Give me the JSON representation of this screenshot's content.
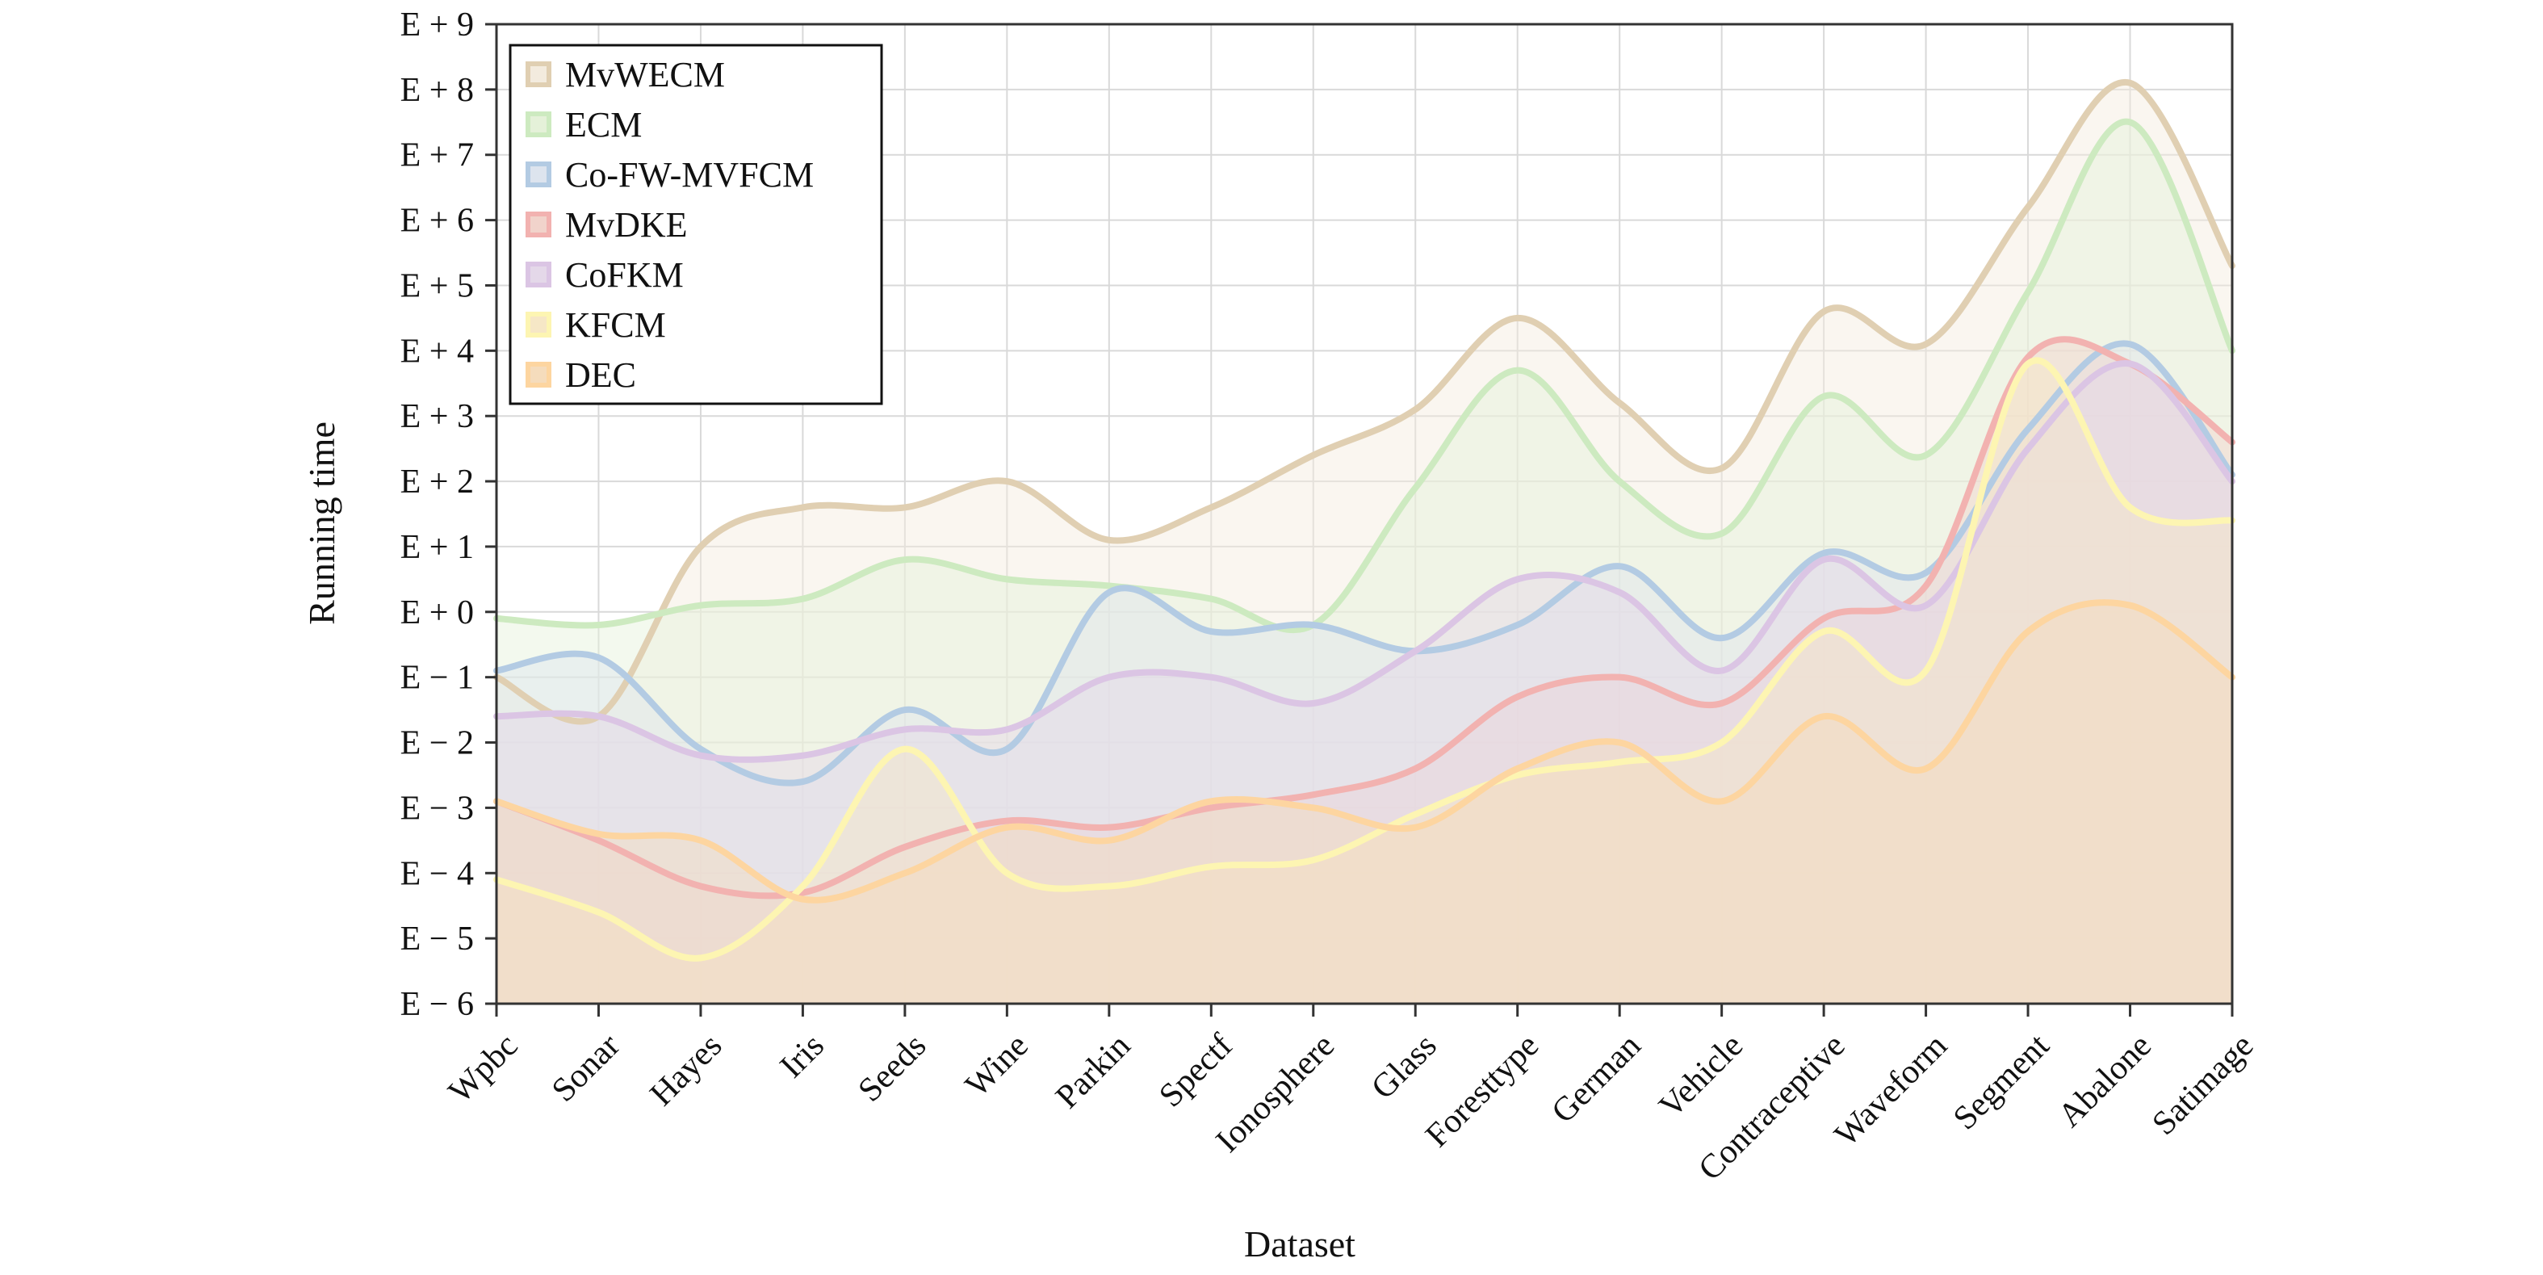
{
  "chart_data": {
    "type": "area",
    "title": "",
    "xlabel": "Dataset",
    "ylabel": "Running time",
    "categories": [
      "Wpbc",
      "Sonar",
      "Hayes",
      "Iris",
      "Seeds",
      "Wine",
      "Parkin",
      "Spectf",
      "Ionosphere",
      "Glass",
      "Foresttype",
      "German",
      "Vehicle",
      "Contraceptive",
      "Waveform",
      "Segment",
      "Abalone",
      "Satimage"
    ],
    "ylim": [
      -6,
      9
    ],
    "y_ticks": [
      -6,
      -5,
      -4,
      -3,
      -2,
      -1,
      0,
      1,
      2,
      3,
      4,
      5,
      6,
      7,
      8,
      9
    ],
    "y_tick_labels": [
      "E − 6",
      "E − 5",
      "E − 4",
      "E − 3",
      "E − 2",
      "E − 1",
      "E + 0",
      "E + 1",
      "E + 2",
      "E + 3",
      "E + 4",
      "E + 5",
      "E + 6",
      "E + 7",
      "E + 8",
      "E + 9"
    ],
    "grid": true,
    "legend_position": "top-left",
    "series": [
      {
        "name": "MvWECM",
        "color": "#e0cfb2",
        "fill": "#f3ebde",
        "values": [
          -1.0,
          -1.6,
          1.0,
          1.6,
          1.6,
          2.0,
          1.1,
          1.6,
          2.4,
          3.1,
          4.5,
          3.2,
          2.2,
          4.6,
          4.1,
          6.2,
          8.1,
          5.3
        ]
      },
      {
        "name": "ECM",
        "color": "#cdeac0",
        "fill": "#e5f1d9",
        "values": [
          -0.1,
          -0.2,
          0.1,
          0.2,
          0.8,
          0.5,
          0.4,
          0.2,
          -0.2,
          1.9,
          3.7,
          2.0,
          1.2,
          3.3,
          2.4,
          4.9,
          7.5,
          4.0
        ]
      },
      {
        "name": "Co-FW-MVFCM",
        "color": "#b3cbe3",
        "fill": "#dde4ee",
        "values": [
          -0.9,
          -0.7,
          -2.1,
          -2.6,
          -1.5,
          -2.1,
          0.3,
          -0.3,
          -0.2,
          -0.6,
          -0.2,
          0.7,
          -0.4,
          0.9,
          0.6,
          2.8,
          4.1,
          2.1
        ]
      },
      {
        "name": "MvDKE",
        "color": "#f2b2b0",
        "fill": "#f1d3cb",
        "values": [
          -2.9,
          -3.5,
          -4.2,
          -4.3,
          -3.6,
          -3.2,
          -3.3,
          -3.0,
          -2.8,
          -2.4,
          -1.3,
          -1.0,
          -1.4,
          -0.1,
          0.4,
          3.9,
          3.8,
          2.6
        ]
      },
      {
        "name": "CoFKM",
        "color": "#dbc5e4",
        "fill": "#e4d8e9",
        "values": [
          -1.6,
          -1.6,
          -2.2,
          -2.2,
          -1.8,
          -1.8,
          -1.0,
          -1.0,
          -1.4,
          -0.6,
          0.5,
          0.3,
          -0.9,
          0.8,
          0.1,
          2.5,
          3.8,
          2.0
        ]
      },
      {
        "name": "KFCM",
        "color": "#fdf5b2",
        "fill": "#f6e7c6",
        "values": [
          -4.1,
          -4.6,
          -5.3,
          -4.2,
          -2.1,
          -4.0,
          -4.2,
          -3.9,
          -3.8,
          -3.1,
          -2.5,
          -2.3,
          -2.0,
          -0.3,
          -0.9,
          3.8,
          1.6,
          1.4
        ]
      },
      {
        "name": "DEC",
        "color": "#fdd5a0",
        "fill": "#f5dcbc",
        "values": [
          -2.9,
          -3.4,
          -3.5,
          -4.4,
          -4.0,
          -3.3,
          -3.5,
          -2.9,
          -3.0,
          -3.3,
          -2.4,
          -2.0,
          -2.9,
          -1.6,
          -2.4,
          -0.3,
          0.1,
          -1.0
        ]
      }
    ]
  }
}
